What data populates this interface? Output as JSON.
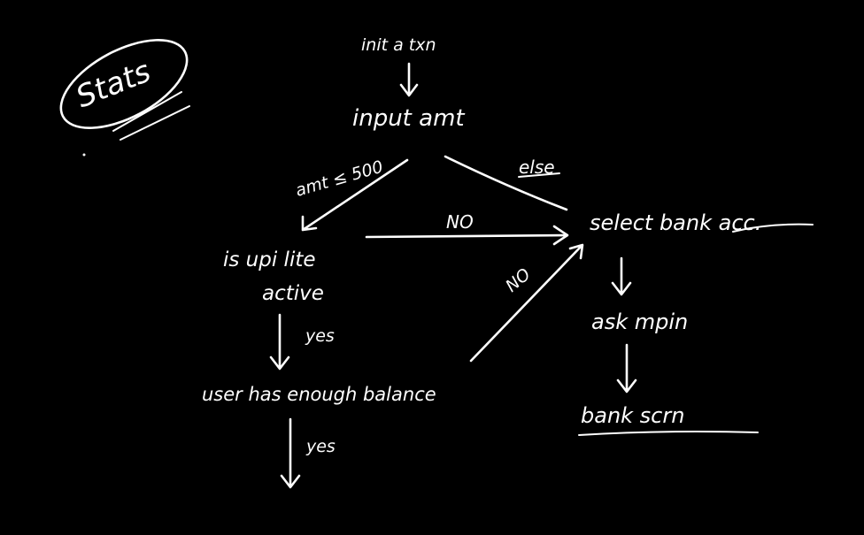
{
  "colors": {
    "background": "#000000",
    "ink": "#ffffff"
  },
  "nodes": {
    "stats": "Stats",
    "init": "init a txn",
    "input": "input amt",
    "upi_lite": "is upi lite",
    "upi_lite_2": "active",
    "balance": "user has enough balance",
    "select_bank": "select bank acc.",
    "ask_mpin": "ask mpin",
    "bank_screen": "bank scrn"
  },
  "edges": {
    "amt_condition": "amt ≤ 500",
    "else": "else",
    "no_1": "NO",
    "no_2": "NO",
    "yes_1": "yes",
    "yes_2": "yes"
  }
}
